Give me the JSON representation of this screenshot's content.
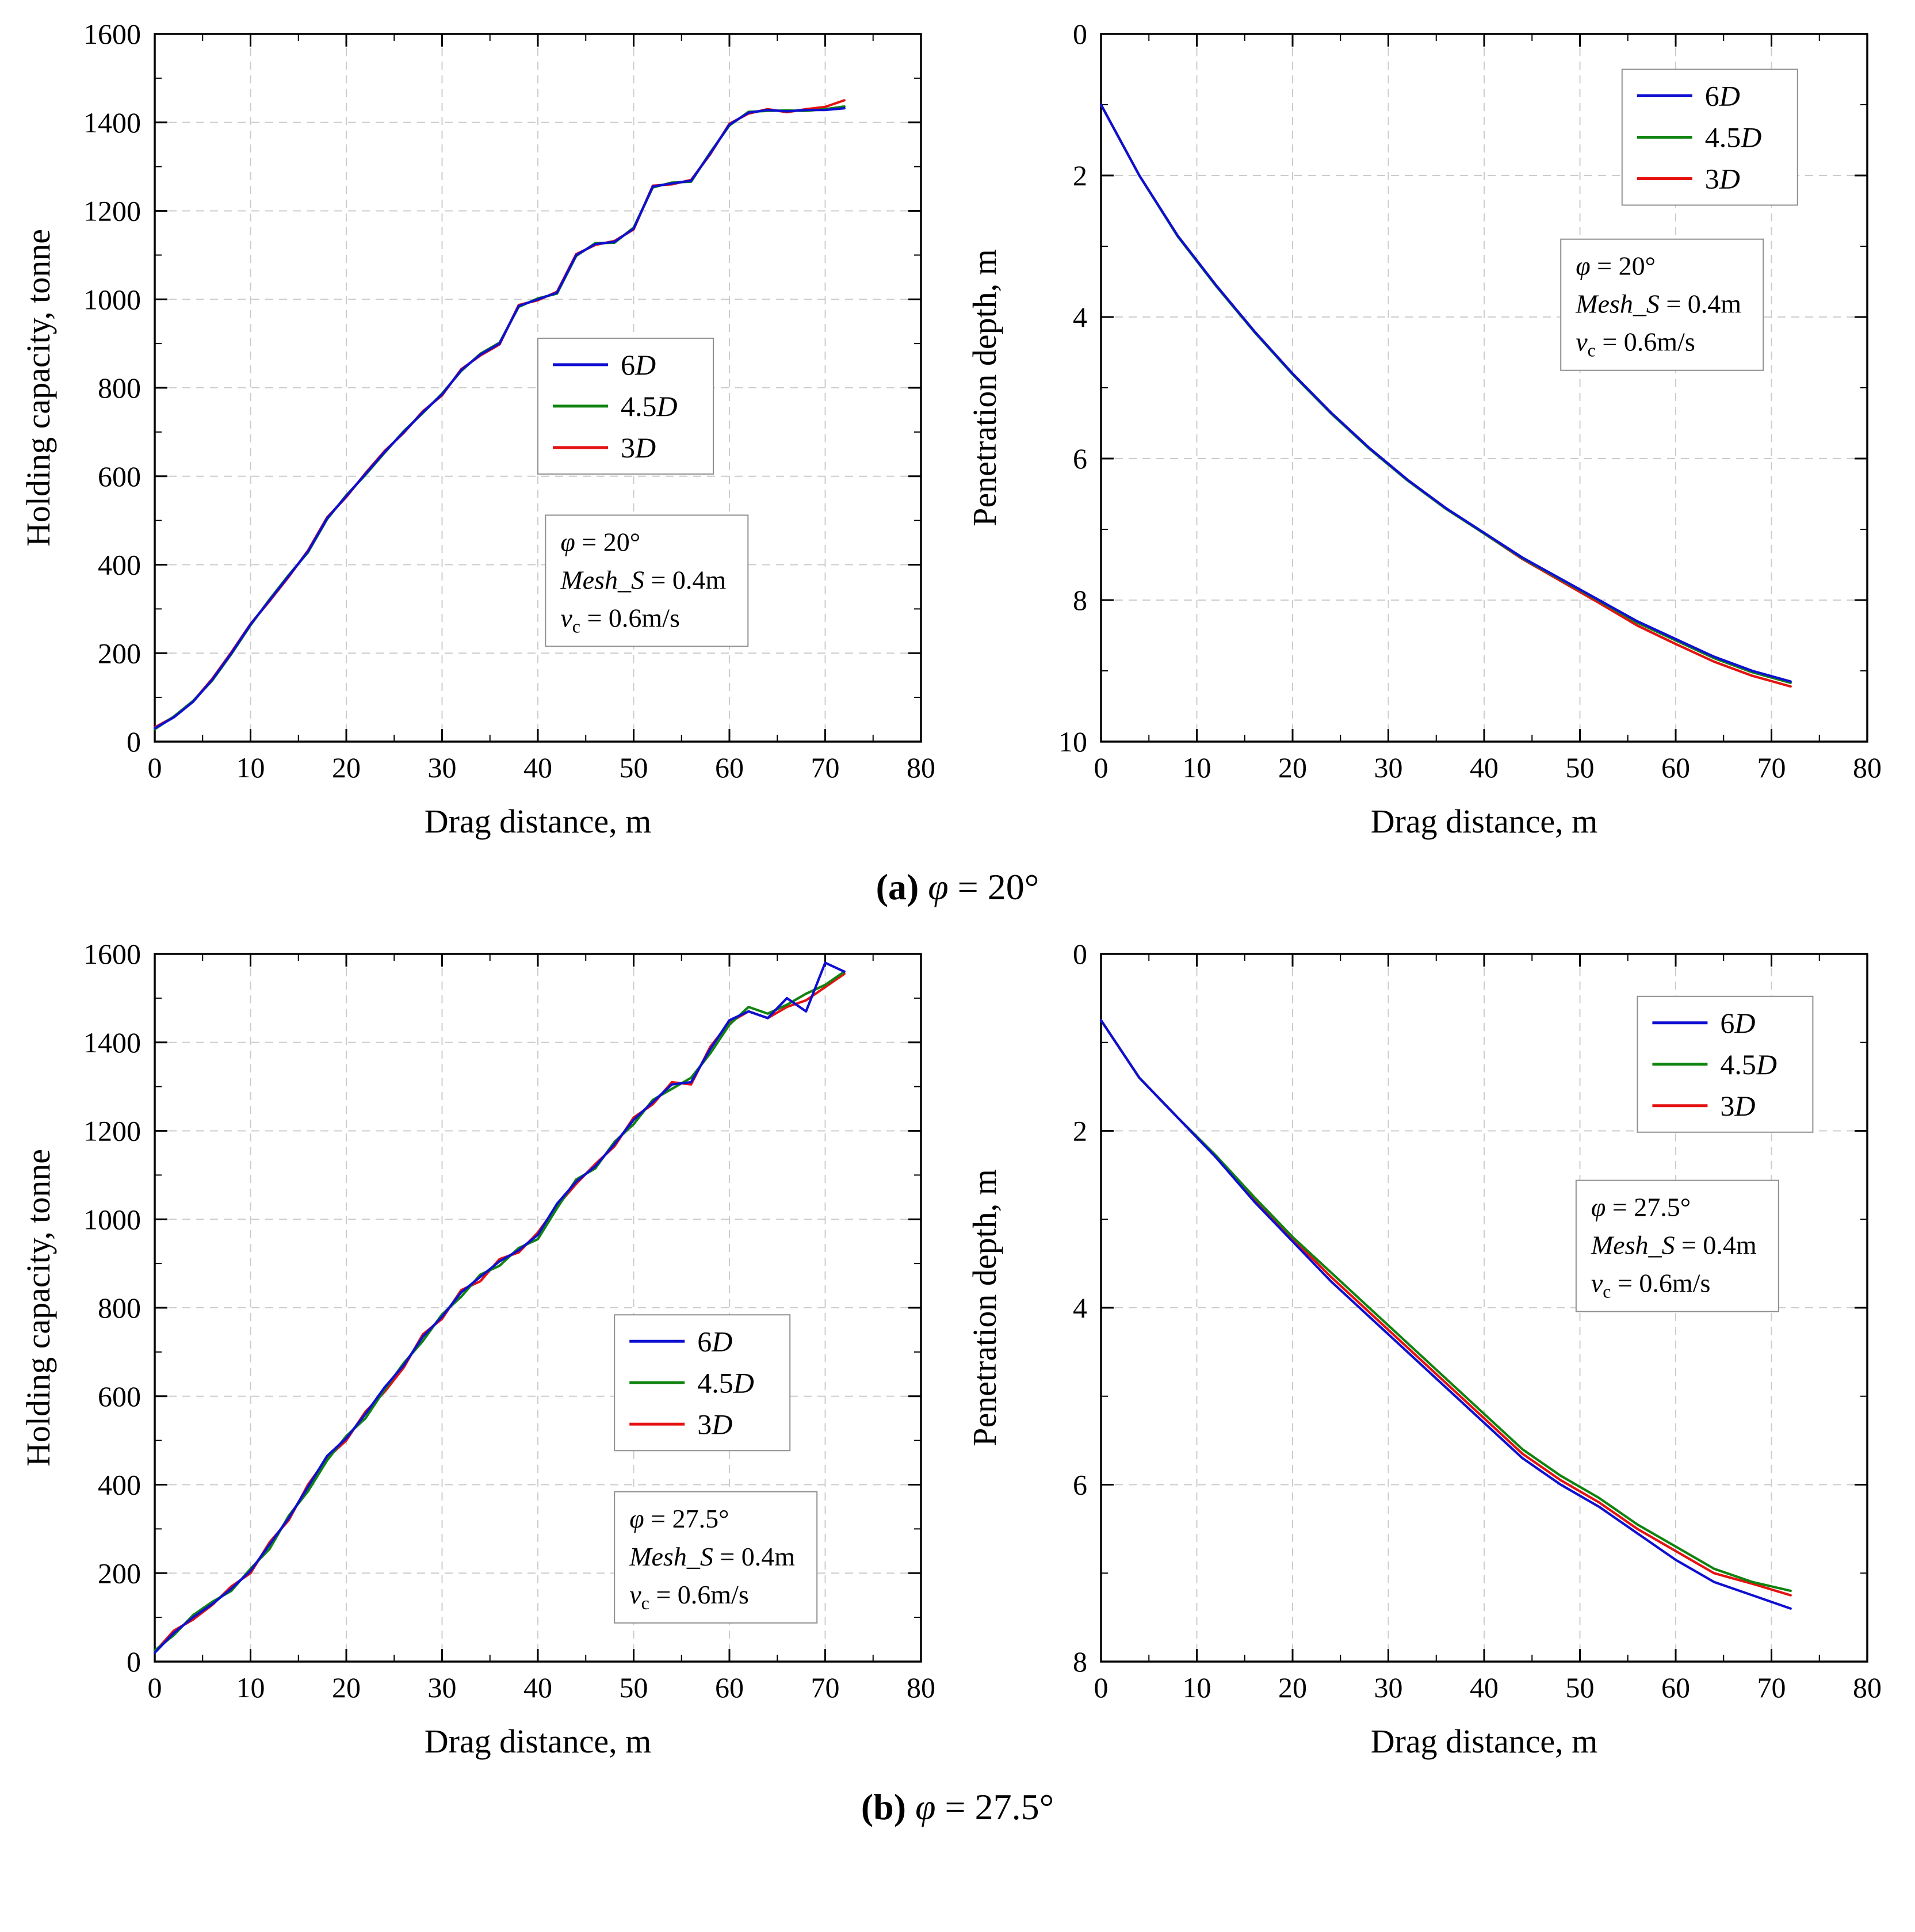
{
  "captions": {
    "a": {
      "bold": "(a)",
      "italic": "φ",
      "rest": " = 20°"
    },
    "b": {
      "bold": "(b)",
      "italic": "φ",
      "rest": " = 27.5°"
    }
  },
  "colors": {
    "blue_6D": "#0f0fd2",
    "green_45D": "#0f830f",
    "red_3D": "#e51212",
    "grid": "#cccccc",
    "frame": "#000000",
    "box_border": "#8f8f8f"
  },
  "chart_data": [
    {
      "id": "holding-20",
      "type": "line",
      "title": "",
      "xlabel": "Drag distance, m",
      "ylabel": "Holding capacity, tonne",
      "xlim": [
        0,
        80
      ],
      "ylim": [
        0,
        1600
      ],
      "xticks": [
        0,
        10,
        20,
        30,
        40,
        50,
        60,
        70,
        80
      ],
      "yticks": [
        0,
        200,
        400,
        600,
        800,
        1000,
        1200,
        1400,
        1600
      ],
      "x_minor_step": 5,
      "y_minor_step": 100,
      "y_inverted": false,
      "grid": true,
      "legend_f": [
        0.5,
        0.43
      ],
      "ann_f": [
        0.51,
        0.68
      ],
      "annotation": [
        {
          "it": "φ",
          "rest": " = 20°"
        },
        {
          "it": "Mesh_S",
          "rest": " = 0.4m"
        },
        {
          "it": "v",
          "sub": "c",
          "rest": " = 0.6m/s"
        }
      ],
      "x": [
        0,
        2,
        4,
        6,
        8,
        10,
        12,
        14,
        16,
        18,
        20,
        22,
        24,
        26,
        28,
        30,
        32,
        34,
        36,
        38,
        40,
        42,
        44,
        46,
        48,
        50,
        52,
        54,
        56,
        58,
        60,
        62,
        64,
        66,
        68,
        70,
        72
      ],
      "series": [
        {
          "name": "6D",
          "color": "#0f0fd2",
          "y": [
            30,
            55,
            90,
            140,
            200,
            265,
            320,
            375,
            430,
            505,
            555,
            605,
            655,
            700,
            745,
            785,
            840,
            875,
            900,
            985,
            1000,
            1015,
            1100,
            1125,
            1130,
            1160,
            1255,
            1262,
            1268,
            1330,
            1395,
            1422,
            1428,
            1425,
            1428,
            1428,
            1432
          ]
        },
        {
          "name": "4.5D",
          "color": "#0f830f",
          "y": [
            28,
            57,
            92,
            138,
            198,
            263,
            322,
            377,
            428,
            503,
            557,
            603,
            653,
            702,
            743,
            787,
            838,
            877,
            902,
            983,
            1002,
            1013,
            1098,
            1127,
            1128,
            1162,
            1253,
            1264,
            1266,
            1332,
            1393,
            1424,
            1426,
            1427,
            1426,
            1430,
            1436
          ]
        },
        {
          "name": "3D",
          "color": "#e51212",
          "y": [
            32,
            56,
            91,
            142,
            202,
            266,
            318,
            373,
            432,
            507,
            553,
            607,
            657,
            698,
            747,
            783,
            842,
            873,
            898,
            987,
            998,
            1017,
            1102,
            1123,
            1132,
            1158,
            1257,
            1260,
            1270,
            1328,
            1397,
            1420,
            1430,
            1423,
            1430,
            1435,
            1450
          ]
        }
      ]
    },
    {
      "id": "pen-20",
      "type": "line",
      "title": "",
      "xlabel": "Drag distance, m",
      "ylabel": "Penetration depth, m",
      "xlim": [
        0,
        80
      ],
      "ylim": [
        0,
        10
      ],
      "xticks": [
        0,
        10,
        20,
        30,
        40,
        50,
        60,
        70,
        80
      ],
      "yticks": [
        0,
        2,
        4,
        6,
        8,
        10
      ],
      "x_minor_step": 5,
      "y_minor_step": 1,
      "y_inverted": true,
      "grid": true,
      "legend_f": [
        0.68,
        0.05
      ],
      "ann_f": [
        0.6,
        0.29
      ],
      "annotation": [
        {
          "it": "φ",
          "rest": " = 20°"
        },
        {
          "it": "Mesh_S",
          "rest": " = 0.4m"
        },
        {
          "it": "v",
          "sub": "c",
          "rest": " = 0.6m/s"
        }
      ],
      "x": [
        0,
        4,
        8,
        12,
        16,
        20,
        24,
        28,
        32,
        36,
        40,
        44,
        48,
        52,
        56,
        60,
        64,
        68,
        72
      ],
      "series": [
        {
          "name": "6D",
          "color": "#0f0fd2",
          "y": [
            1.0,
            2.0,
            2.85,
            3.55,
            4.2,
            4.8,
            5.35,
            5.85,
            6.3,
            6.7,
            7.05,
            7.4,
            7.7,
            8.0,
            8.3,
            8.55,
            8.8,
            9.0,
            9.15
          ]
        },
        {
          "name": "4.5D",
          "color": "#0f830f",
          "y": [
            1.0,
            2.0,
            2.86,
            3.56,
            4.21,
            4.81,
            5.36,
            5.86,
            6.31,
            6.71,
            7.06,
            7.41,
            7.71,
            8.01,
            8.32,
            8.57,
            8.82,
            9.02,
            9.17
          ]
        },
        {
          "name": "3D",
          "color": "#e51212",
          "y": [
            1.0,
            2.0,
            2.85,
            3.55,
            4.2,
            4.8,
            5.35,
            5.85,
            6.3,
            6.7,
            7.06,
            7.42,
            7.73,
            8.04,
            8.36,
            8.62,
            8.87,
            9.07,
            9.22
          ]
        }
      ]
    },
    {
      "id": "holding-27",
      "type": "line",
      "title": "",
      "xlabel": "Drag distance, m",
      "ylabel": "Holding capacity, tonne",
      "xlim": [
        0,
        80
      ],
      "ylim": [
        0,
        1600
      ],
      "xticks": [
        0,
        10,
        20,
        30,
        40,
        50,
        60,
        70,
        80
      ],
      "yticks": [
        0,
        200,
        400,
        600,
        800,
        1000,
        1200,
        1400,
        1600
      ],
      "x_minor_step": 5,
      "y_minor_step": 100,
      "y_inverted": false,
      "grid": true,
      "legend_f": [
        0.6,
        0.51
      ],
      "ann_f": [
        0.6,
        0.76
      ],
      "annotation": [
        {
          "it": "φ",
          "rest": " = 27.5°"
        },
        {
          "it": "Mesh_S",
          "rest": " = 0.4m"
        },
        {
          "it": "v",
          "sub": "c",
          "rest": " = 0.6m/s"
        }
      ],
      "x": [
        0,
        2,
        4,
        6,
        8,
        10,
        12,
        14,
        16,
        18,
        20,
        22,
        24,
        26,
        28,
        30,
        32,
        34,
        36,
        38,
        40,
        42,
        44,
        46,
        48,
        50,
        52,
        54,
        56,
        58,
        60,
        62,
        64,
        66,
        68,
        70,
        72
      ],
      "series": [
        {
          "name": "6D",
          "color": "#0f0fd2",
          "y": [
            20,
            65,
            100,
            130,
            165,
            205,
            265,
            325,
            395,
            465,
            505,
            560,
            620,
            670,
            735,
            780,
            835,
            870,
            905,
            930,
            965,
            1035,
            1085,
            1120,
            1170,
            1225,
            1265,
            1305,
            1310,
            1385,
            1450,
            1470,
            1455,
            1500,
            1470,
            1580,
            1560
          ]
        },
        {
          "name": "4.5D",
          "color": "#0f830f",
          "y": [
            25,
            60,
            105,
            135,
            160,
            210,
            255,
            330,
            385,
            455,
            510,
            550,
            615,
            675,
            725,
            785,
            825,
            875,
            895,
            935,
            955,
            1025,
            1090,
            1115,
            1175,
            1215,
            1270,
            1295,
            1320,
            1375,
            1440,
            1480,
            1465,
            1485,
            1510,
            1530,
            1560
          ]
        },
        {
          "name": "3D",
          "color": "#e51212",
          "y": [
            22,
            70,
            95,
            128,
            170,
            200,
            270,
            320,
            400,
            460,
            500,
            565,
            610,
            665,
            740,
            775,
            840,
            860,
            910,
            925,
            970,
            1030,
            1080,
            1125,
            1165,
            1230,
            1260,
            1310,
            1305,
            1390,
            1445,
            1470,
            1455,
            1480,
            1495,
            1525,
            1555
          ]
        }
      ]
    },
    {
      "id": "pen-27",
      "type": "line",
      "title": "",
      "xlabel": "Drag distance, m",
      "ylabel": "Penetration depth, m",
      "xlim": [
        0,
        80
      ],
      "ylim": [
        0,
        8
      ],
      "xticks": [
        0,
        10,
        20,
        30,
        40,
        50,
        60,
        70,
        80
      ],
      "yticks": [
        0,
        2,
        4,
        6,
        8
      ],
      "x_minor_step": 5,
      "y_minor_step": 1,
      "y_inverted": true,
      "grid": true,
      "legend_f": [
        0.7,
        0.06
      ],
      "ann_f": [
        0.62,
        0.32
      ],
      "annotation": [
        {
          "it": "φ",
          "rest": " = 27.5°"
        },
        {
          "it": "Mesh_S",
          "rest": " = 0.4m"
        },
        {
          "it": "v",
          "sub": "c",
          "rest": " = 0.6m/s"
        }
      ],
      "x": [
        0,
        4,
        8,
        12,
        16,
        20,
        24,
        28,
        32,
        36,
        40,
        44,
        48,
        52,
        56,
        60,
        64,
        68,
        72
      ],
      "series": [
        {
          "name": "6D",
          "color": "#0f0fd2",
          "y": [
            0.75,
            1.4,
            1.85,
            2.3,
            2.8,
            3.25,
            3.7,
            4.1,
            4.5,
            4.9,
            5.3,
            5.7,
            6.0,
            6.25,
            6.55,
            6.85,
            7.1,
            7.25,
            7.4
          ]
        },
        {
          "name": "4.5D",
          "color": "#0f830f",
          "y": [
            0.75,
            1.4,
            1.85,
            2.28,
            2.75,
            3.2,
            3.6,
            4.0,
            4.4,
            4.8,
            5.2,
            5.6,
            5.9,
            6.15,
            6.45,
            6.7,
            6.95,
            7.1,
            7.2
          ]
        },
        {
          "name": "3D",
          "color": "#e51212",
          "y": [
            0.75,
            1.4,
            1.85,
            2.3,
            2.78,
            3.22,
            3.65,
            4.05,
            4.45,
            4.85,
            5.25,
            5.65,
            5.95,
            6.2,
            6.5,
            6.75,
            7.0,
            7.12,
            7.25
          ]
        }
      ]
    }
  ]
}
